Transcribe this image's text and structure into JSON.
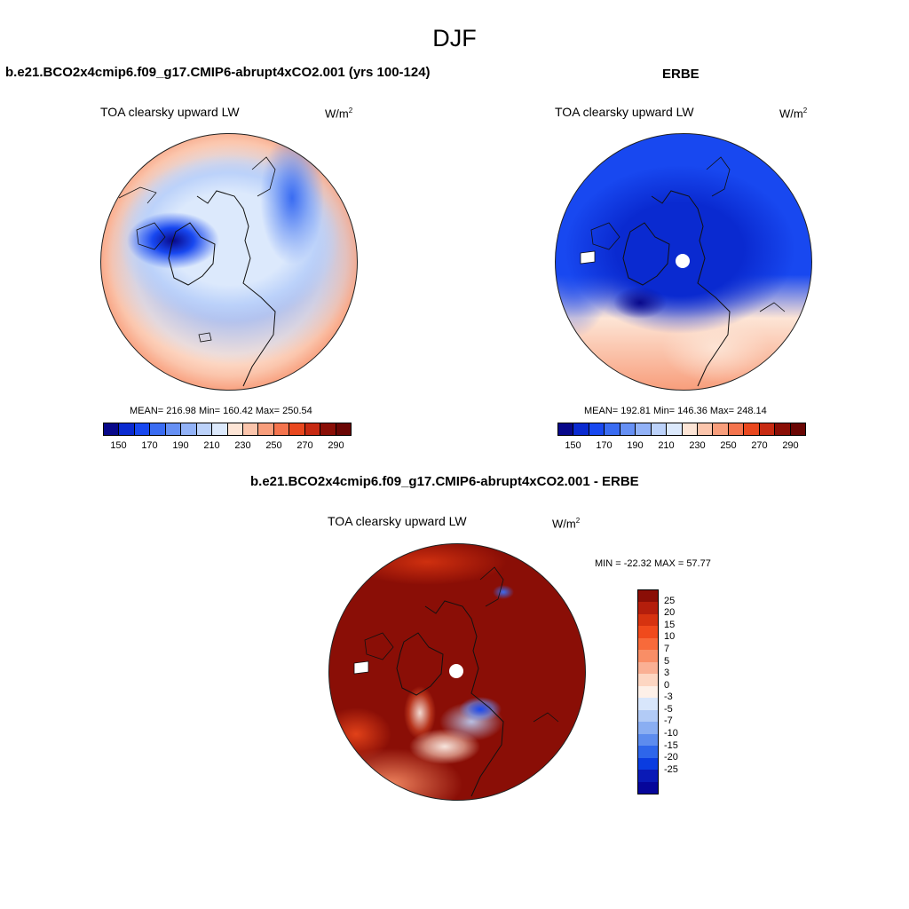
{
  "title": "DJF",
  "chart_data": [
    {
      "type": "heatmap",
      "projection": "north polar stereographic",
      "title": "b.e21.BCO2x4cmip6.f09_g17.CMIP6-abrupt4xCO2.001 (yrs 100-124)",
      "variable": "TOA clearsky upward LW",
      "units_base": "W/m",
      "units_exp": "2",
      "stats": {
        "mean": 216.98,
        "min": 160.42,
        "max": 250.54
      },
      "stats_text": "MEAN= 216.98  Min= 160.42  Max= 250.54",
      "colorbar": {
        "levels": [
          150,
          160,
          170,
          180,
          190,
          200,
          210,
          220,
          230,
          240,
          250,
          260,
          270,
          280,
          290
        ],
        "tick_labels": [
          "150",
          "170",
          "190",
          "210",
          "230",
          "250",
          "270",
          "290"
        ],
        "colors": [
          "#08088a",
          "#0a2ad0",
          "#1848f0",
          "#3a6cf2",
          "#6690f4",
          "#92b2f7",
          "#bcd2fa",
          "#dce9fc",
          "#fde5d6",
          "#fbc5ac",
          "#f89e7c",
          "#f4744e",
          "#e9481f",
          "#c72a12",
          "#8a0e06",
          "#6a0604"
        ]
      }
    },
    {
      "type": "heatmap",
      "projection": "north polar stereographic",
      "title": "ERBE",
      "variable": "TOA clearsky upward LW",
      "units_base": "W/m",
      "units_exp": "2",
      "stats": {
        "mean": 192.81,
        "min": 146.36,
        "max": 248.14
      },
      "stats_text": "MEAN= 192.81  Min= 146.36  Max= 248.14",
      "colorbar": {
        "levels": [
          150,
          160,
          170,
          180,
          190,
          200,
          210,
          220,
          230,
          240,
          250,
          260,
          270,
          280,
          290
        ],
        "tick_labels": [
          "150",
          "170",
          "190",
          "210",
          "230",
          "250",
          "270",
          "290"
        ],
        "colors": [
          "#08088a",
          "#0a2ad0",
          "#1848f0",
          "#3a6cf2",
          "#6690f4",
          "#92b2f7",
          "#bcd2fa",
          "#dce9fc",
          "#fde5d6",
          "#fbc5ac",
          "#f89e7c",
          "#f4744e",
          "#e9481f",
          "#c72a12",
          "#8a0e06",
          "#6a0604"
        ]
      }
    },
    {
      "type": "heatmap",
      "projection": "north polar stereographic",
      "title": "b.e21.BCO2x4cmip6.f09_g17.CMIP6-abrupt4xCO2.001 - ERBE",
      "variable": "TOA clearsky upward LW",
      "units_base": "W/m",
      "units_exp": "2",
      "stats": {
        "min": -22.32,
        "max": 57.77
      },
      "stats_text": "MIN = -22.32 MAX =  57.77",
      "colorbar": {
        "levels": [
          25,
          20,
          15,
          10,
          7,
          5,
          3,
          0,
          -3,
          -5,
          -7,
          -10,
          -15,
          -20,
          -25
        ],
        "tick_labels": [
          "25",
          "20",
          "15",
          "10",
          "7",
          "5",
          "3",
          "0",
          "-3",
          "-5",
          "-7",
          "-10",
          "-15",
          "-20",
          "-25"
        ],
        "colors": [
          "#8a0e06",
          "#b41e0c",
          "#d63310",
          "#f04a1c",
          "#f86a3a",
          "#f98e66",
          "#fab094",
          "#fdd6c2",
          "#fdf0e8",
          "#d8e6fb",
          "#b2cbf6",
          "#8aaef2",
          "#5d8cee",
          "#2e66ea",
          "#0a3ce0",
          "#0a1ab6",
          "#06069a"
        ]
      }
    }
  ]
}
